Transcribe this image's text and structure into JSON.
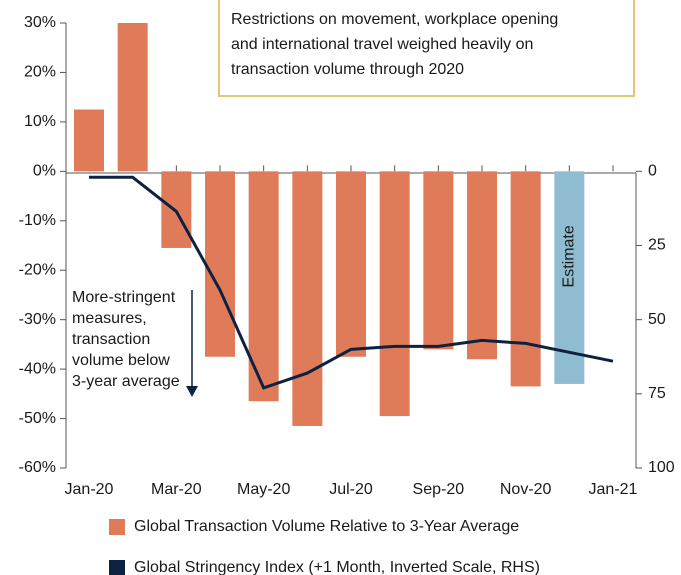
{
  "chart_data": {
    "type": "bar",
    "categories": [
      "Jan-20",
      null,
      "Mar-20",
      null,
      "May-20",
      null,
      "Jul-20",
      null,
      "Sep-20",
      null,
      "Nov-20",
      null,
      "Jan-21"
    ],
    "series": [
      {
        "name": "Global Transaction Volume Relative to 3-Year Average",
        "color": "#e07b5a",
        "values": [
          12.5,
          30,
          -15.5,
          -37.5,
          -46.5,
          -51.5,
          -37.5,
          -49.5,
          -36,
          -38,
          -43.5,
          -43,
          null
        ]
      },
      {
        "name": "Global Stringency Index (+1 Month, Inverted Scale, RHS)",
        "color": "#0d2240",
        "axis": "y2",
        "type": "line",
        "values": [
          2,
          2,
          13.5,
          40,
          73,
          68,
          60,
          59,
          59,
          57,
          58,
          61,
          64
        ]
      }
    ],
    "estimate": {
      "index": 11,
      "label": "Estimate",
      "color": "#8fbcd0"
    },
    "ylim": [
      -60,
      30
    ],
    "yticks": [
      {
        "value": -60,
        "label": "-60%"
      },
      {
        "value": -50,
        "label": "-50%"
      },
      {
        "value": -40,
        "label": "-40%"
      },
      {
        "value": -30,
        "label": "-30%"
      },
      {
        "value": -20,
        "label": "-20%"
      },
      {
        "value": -10,
        "label": "-10%"
      },
      {
        "value": 0,
        "label": "0%"
      },
      {
        "value": 10,
        "label": "10%"
      },
      {
        "value": 20,
        "label": "20%"
      },
      {
        "value": 30,
        "label": "30%"
      }
    ],
    "y2lim": [
      0,
      100
    ],
    "y2_inverted": true,
    "y2ticks": [
      0,
      25,
      50,
      75,
      100
    ],
    "box_note": [
      "Restrictions on movement, workplace opening",
      "and international travel weighed heavily on",
      "transaction volume through 2020"
    ],
    "arrow_note": [
      "More-stringent",
      "measures,",
      "transaction",
      "volume below",
      "3-year average"
    ]
  }
}
